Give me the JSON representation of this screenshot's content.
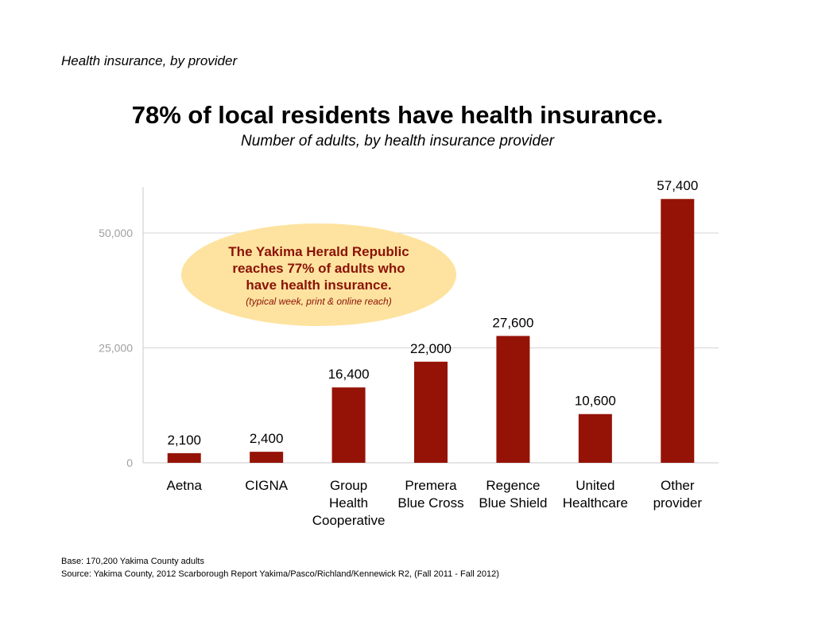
{
  "slide_label": "Health insurance, by provider",
  "callout": {
    "main": "The Yakima Herald Republic reaches 77% of adults who have health insurance.",
    "note": "(typical week, print & online reach)",
    "color": "#8b1207",
    "fill": "#fde39f"
  },
  "footer": {
    "base": "Base: 170,200 Yakima County adults",
    "source": "Source: Yakima County, 2012 Scarborough Report Yakima/Pasco/Richland/Kennewick R2, (Fall 2011 - Fall 2012)"
  },
  "chart_data": {
    "type": "bar",
    "title": "78% of local residents have health insurance.",
    "subtitle": "Number of adults, by health insurance provider",
    "categories": [
      [
        "Aetna"
      ],
      [
        "CIGNA"
      ],
      [
        "Group",
        "Health",
        "Cooperative"
      ],
      [
        "Premera",
        "Blue Cross"
      ],
      [
        "Regence",
        "Blue Shield"
      ],
      [
        "United",
        "Healthcare"
      ],
      [
        "Other",
        "provider"
      ]
    ],
    "values": [
      2100,
      2400,
      16400,
      22000,
      27600,
      10600,
      57400
    ],
    "value_labels": [
      "2,100",
      "2,400",
      "16,400",
      "22,000",
      "27,600",
      "10,600",
      "57,400"
    ],
    "yticks": [
      0,
      25000,
      50000
    ],
    "ytick_labels": [
      "0",
      "25,000",
      "50,000"
    ],
    "ylim": [
      0,
      60000
    ],
    "grid": true,
    "bar_color": "#951306"
  }
}
